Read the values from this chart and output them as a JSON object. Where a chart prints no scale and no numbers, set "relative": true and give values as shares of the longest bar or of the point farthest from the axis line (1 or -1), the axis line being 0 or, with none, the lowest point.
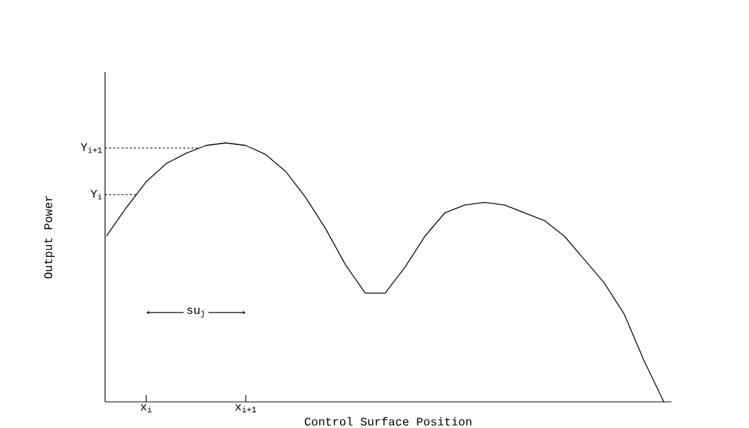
{
  "chart_data": {
    "type": "line",
    "relative": true,
    "xlabel": "Control Surface Position",
    "ylabel": "Output Power",
    "color": "#000000",
    "categories": [
      null,
      null,
      "x$_{i}$",
      null,
      null,
      null,
      null,
      "x$_{i+1}$",
      null,
      null,
      null,
      null,
      null,
      null,
      null,
      null,
      null,
      null,
      null,
      null,
      null,
      null,
      null,
      null,
      null,
      null,
      null,
      null,
      null
    ],
    "values": [
      0.64,
      0.75,
      0.85,
      0.92,
      0.96,
      0.99,
      1.0,
      0.99,
      0.955,
      0.89,
      0.79,
      0.67,
      0.53,
      0.42,
      0.42,
      0.52,
      0.64,
      0.73,
      0.76,
      0.77,
      0.76,
      0.73,
      0.7,
      0.64,
      0.55,
      0.46,
      0.34,
      0.16,
      0
    ],
    "ref_lines": [
      {
        "axis": "y",
        "value": 0.8,
        "label": "Y$_{i}$",
        "line_style": "dashed"
      },
      {
        "axis": "y",
        "value": 0.98,
        "label": "Y$_{i+1}$",
        "line_style": "dashed"
      }
    ],
    "annotations": [
      "su$_{j}$"
    ],
    "marker": "none",
    "line_style": "solid"
  }
}
